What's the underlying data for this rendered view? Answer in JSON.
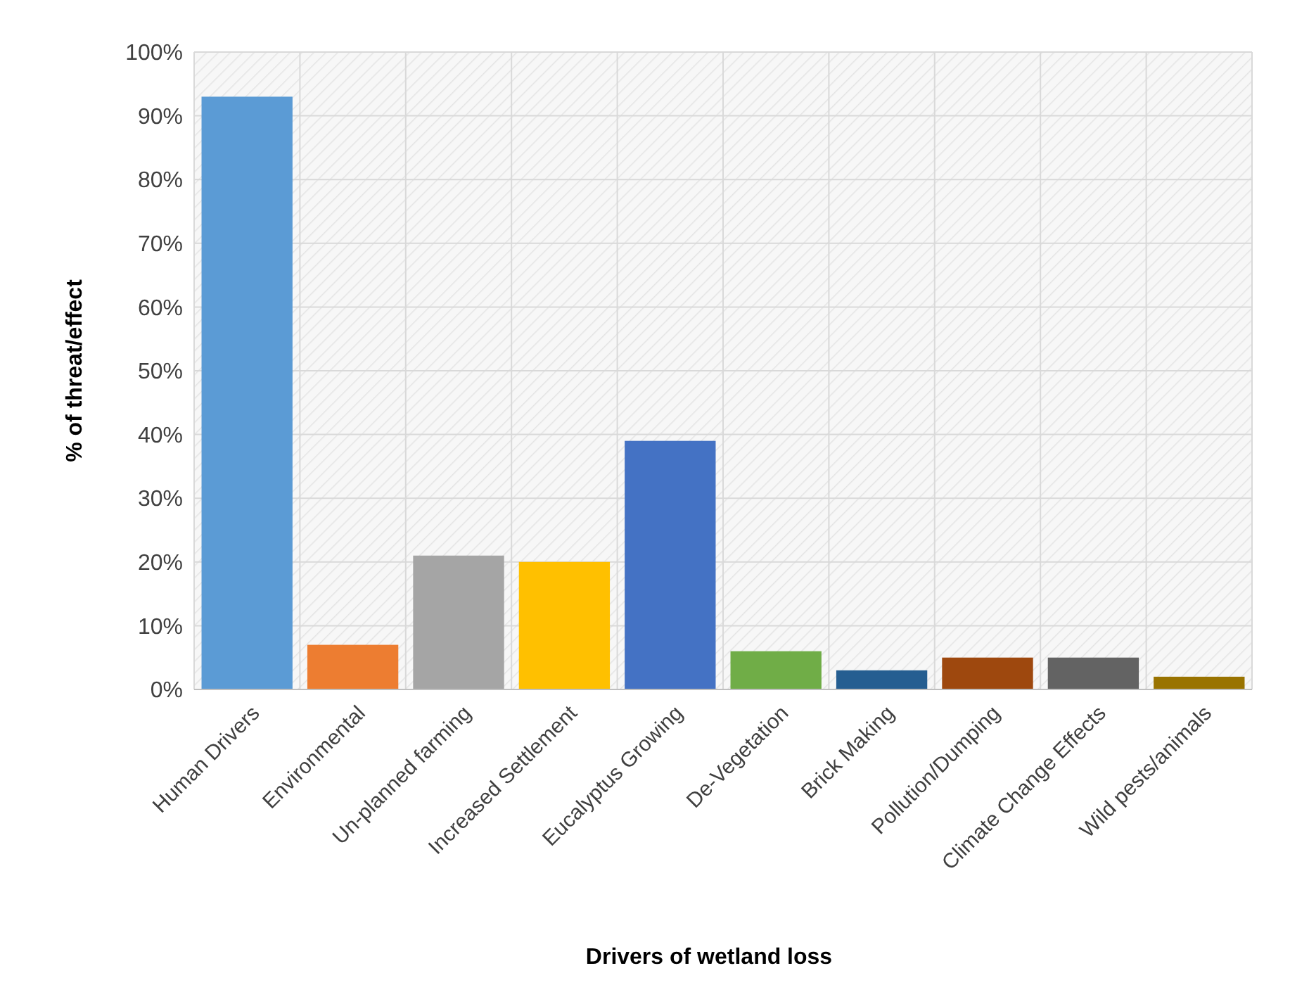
{
  "chart_data": {
    "type": "bar",
    "xlabel": "Drivers of wetland loss",
    "ylabel": "% of threat/effect",
    "categories": [
      "Human Drivers",
      "Environmental",
      "Un-planned farming",
      "Increased Settlement",
      "Eucalyptus Growing",
      "De-Vegetation",
      "Brick Making",
      "Pollution/Dumping",
      "Climate Change Effects",
      "Wild pests/animals"
    ],
    "values": [
      93,
      7,
      21,
      20,
      39,
      6,
      3,
      5,
      5,
      2
    ],
    "colors": [
      "#5b9bd5",
      "#ed7d31",
      "#a5a5a5",
      "#ffc000",
      "#4472c4",
      "#70ad47",
      "#255e91",
      "#9e480e",
      "#636363",
      "#997300"
    ],
    "ylim": [
      0,
      100
    ],
    "yticks": [
      {
        "value": 0,
        "label": "0%"
      },
      {
        "value": 10,
        "label": "10%"
      },
      {
        "value": 20,
        "label": "20%"
      },
      {
        "value": 30,
        "label": "30%"
      },
      {
        "value": 40,
        "label": "40%"
      },
      {
        "value": 50,
        "label": "50%"
      },
      {
        "value": 60,
        "label": "60%"
      },
      {
        "value": 70,
        "label": "70%"
      },
      {
        "value": 80,
        "label": "80%"
      },
      {
        "value": 90,
        "label": "90%"
      },
      {
        "value": 100,
        "label": "100%"
      }
    ],
    "grid": true
  }
}
